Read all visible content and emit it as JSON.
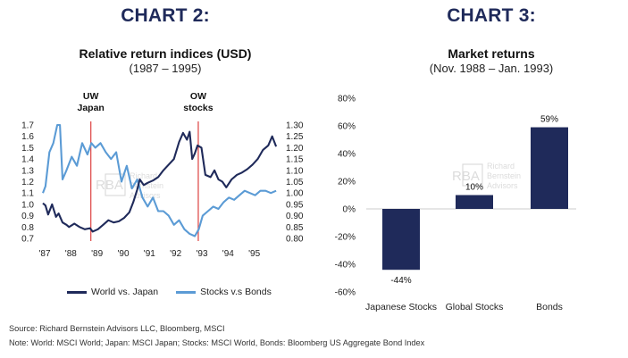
{
  "chart_data": [
    {
      "type": "line",
      "chart_label": "CHART 2:",
      "title": "Relative return indices (USD)",
      "subtitle": "(1987 – 1995)",
      "x_ticks": [
        "'87",
        "'88",
        "'89",
        "'90",
        "'91",
        "'92",
        "'93",
        "'94",
        "'95"
      ],
      "x_range": [
        1987.0,
        1996.0
      ],
      "left_axis": {
        "range": [
          0.7,
          1.7
        ],
        "ticks": [
          "1.7",
          "1.6",
          "1.5",
          "1.4",
          "1.3",
          "1.2",
          "1.1",
          "1.0",
          "0.9",
          "0.8",
          "0.7"
        ]
      },
      "right_axis": {
        "range": [
          0.8,
          1.3
        ],
        "ticks": [
          "1.30",
          "1.25",
          "1.20",
          "1.15",
          "1.10",
          "1.05",
          "1.00",
          "0.95",
          "0.90",
          "0.85",
          "0.80"
        ]
      },
      "annotations": [
        {
          "line1": "UW",
          "line2": "Japan",
          "x": 1988.83
        },
        {
          "line1": "OW",
          "line2": "stocks",
          "x": 1992.93
        }
      ],
      "series": [
        {
          "name": "World vs. Japan",
          "axis": "left",
          "color": "#1f2a5a",
          "x": [
            1987.0,
            1987.1,
            1987.2,
            1987.35,
            1987.5,
            1987.6,
            1987.75,
            1987.9,
            1988.0,
            1988.2,
            1988.4,
            1988.6,
            1988.8,
            1988.9,
            1989.1,
            1989.3,
            1989.5,
            1989.7,
            1989.9,
            1990.1,
            1990.3,
            1990.45,
            1990.6,
            1990.7,
            1990.85,
            1991.0,
            1991.2,
            1991.4,
            1991.6,
            1991.8,
            1992.0,
            1992.2,
            1992.35,
            1992.5,
            1992.6,
            1992.7,
            1992.8,
            1992.9,
            1993.05,
            1993.2,
            1993.4,
            1993.55,
            1993.7,
            1993.85,
            1994.0,
            1994.2,
            1994.4,
            1994.6,
            1994.8,
            1995.0,
            1995.2,
            1995.4,
            1995.6,
            1995.75,
            1995.9
          ],
          "values": [
            1.01,
            0.99,
            0.91,
            1.0,
            0.89,
            0.92,
            0.84,
            0.82,
            0.8,
            0.83,
            0.8,
            0.78,
            0.79,
            0.76,
            0.78,
            0.82,
            0.86,
            0.84,
            0.85,
            0.88,
            0.93,
            1.02,
            1.13,
            1.22,
            1.17,
            1.19,
            1.21,
            1.24,
            1.3,
            1.35,
            1.4,
            1.55,
            1.63,
            1.57,
            1.64,
            1.4,
            1.45,
            1.52,
            1.5,
            1.26,
            1.24,
            1.3,
            1.22,
            1.2,
            1.15,
            1.22,
            1.26,
            1.28,
            1.31,
            1.35,
            1.4,
            1.48,
            1.52,
            1.6,
            1.51
          ]
        },
        {
          "name": "Stocks v.s Bonds",
          "axis": "right",
          "color": "#5b9bd5",
          "x": [
            1987.0,
            1987.1,
            1987.25,
            1987.4,
            1987.55,
            1987.65,
            1987.75,
            1987.9,
            1988.1,
            1988.3,
            1988.5,
            1988.7,
            1988.85,
            1989.0,
            1989.2,
            1989.4,
            1989.6,
            1989.8,
            1990.0,
            1990.2,
            1990.4,
            1990.6,
            1990.8,
            1991.0,
            1991.2,
            1991.4,
            1991.6,
            1991.8,
            1992.0,
            1992.2,
            1992.4,
            1992.6,
            1992.8,
            1992.95,
            1993.1,
            1993.3,
            1993.5,
            1993.7,
            1993.9,
            1994.1,
            1994.3,
            1994.5,
            1994.7,
            1994.9,
            1995.1,
            1995.3,
            1995.5,
            1995.7,
            1995.9
          ],
          "values": [
            1.0,
            1.03,
            1.18,
            1.22,
            1.3,
            1.3,
            1.06,
            1.1,
            1.16,
            1.12,
            1.22,
            1.17,
            1.22,
            1.2,
            1.22,
            1.18,
            1.15,
            1.18,
            1.05,
            1.12,
            1.02,
            1.06,
            0.98,
            0.94,
            0.98,
            0.92,
            0.92,
            0.9,
            0.86,
            0.88,
            0.84,
            0.82,
            0.81,
            0.84,
            0.9,
            0.92,
            0.94,
            0.93,
            0.96,
            0.98,
            0.97,
            0.99,
            1.01,
            1.0,
            0.99,
            1.01,
            1.01,
            1.0,
            1.01
          ]
        }
      ]
    },
    {
      "type": "bar",
      "chart_label": "CHART 3:",
      "title": "Market returns",
      "subtitle": "(Nov. 1988 – Jan. 1993)",
      "categories": [
        "Japanese Stocks",
        "Global Stocks",
        "Bonds"
      ],
      "values": [
        -44,
        10,
        59
      ],
      "value_labels": [
        "-44%",
        "10%",
        "59%"
      ],
      "ylim": [
        -60,
        80
      ],
      "y_ticks": [
        "80%",
        "60%",
        "40%",
        "20%",
        "0%",
        "-20%",
        "-40%",
        "-60%"
      ],
      "bar_color": "#1f2a5a"
    }
  ],
  "watermark": {
    "logo_text": "RBA",
    "line1": "Richard",
    "line2": "Bernstein",
    "line3": "Advisors"
  },
  "footer": {
    "source": "Source: Richard Bernstein Advisors LLC, Bloomberg, MSCI",
    "note": "Note: World: MSCI World; Japan: MSCI Japan; Stocks: MSCI World, Bonds: Bloomberg US Aggregate Bond Index"
  }
}
